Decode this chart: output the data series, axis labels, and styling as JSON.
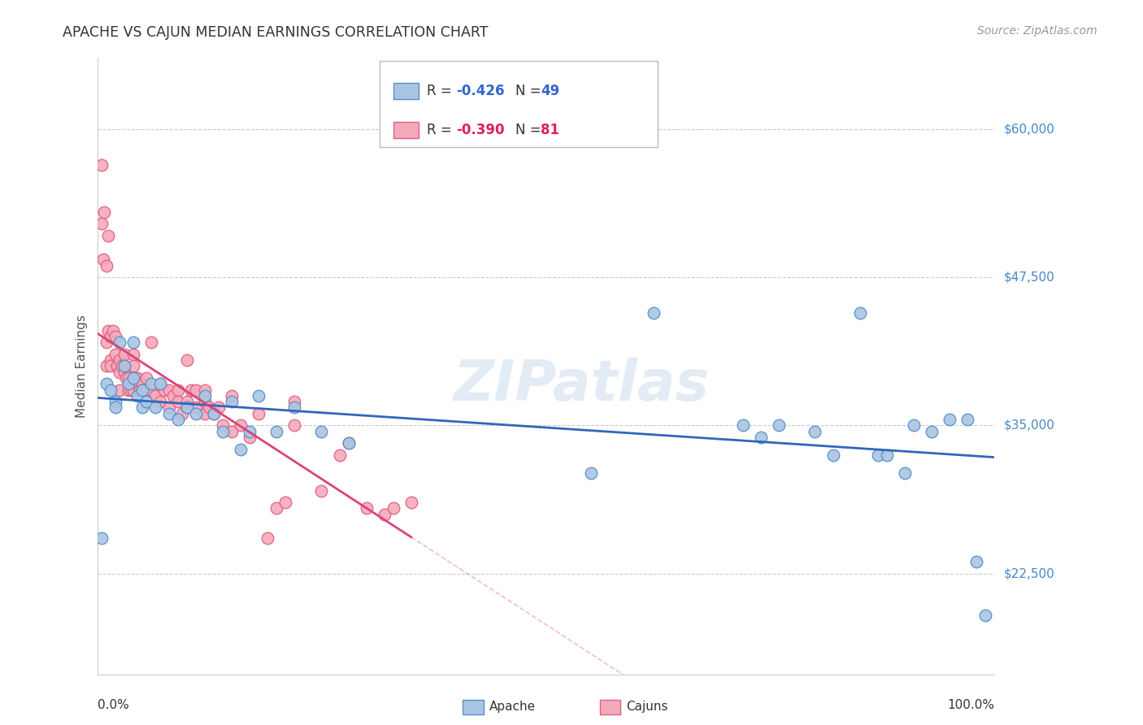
{
  "title": "APACHE VS CAJUN MEDIAN EARNINGS CORRELATION CHART",
  "source": "Source: ZipAtlas.com",
  "ylabel": "Median Earnings",
  "yticks": [
    22500,
    35000,
    47500,
    60000
  ],
  "ytick_labels": [
    "$22,500",
    "$35,000",
    "$47,500",
    "$60,000"
  ],
  "xlim": [
    0.0,
    1.0
  ],
  "ylim": [
    14000,
    66000
  ],
  "apache_color": "#aac5e2",
  "cajun_color": "#f5aabb",
  "apache_edge_color": "#5590cc",
  "cajun_edge_color": "#e06080",
  "apache_line_color": "#3366bb",
  "cajun_line_color": "#dd4477",
  "apache_R": -0.426,
  "apache_N": 49,
  "cajun_R": -0.39,
  "cajun_N": 81,
  "watermark": "ZIPatlas",
  "background_color": "#ffffff",
  "apache_x": [
    0.005,
    0.01,
    0.015,
    0.02,
    0.02,
    0.025,
    0.03,
    0.035,
    0.04,
    0.04,
    0.045,
    0.05,
    0.05,
    0.055,
    0.06,
    0.065,
    0.07,
    0.08,
    0.09,
    0.1,
    0.11,
    0.12,
    0.13,
    0.14,
    0.15,
    0.16,
    0.17,
    0.18,
    0.2,
    0.22,
    0.25,
    0.28,
    0.55,
    0.62,
    0.72,
    0.74,
    0.76,
    0.8,
    0.82,
    0.85,
    0.87,
    0.88,
    0.9,
    0.91,
    0.93,
    0.95,
    0.97,
    0.98,
    0.99
  ],
  "apache_y": [
    25500,
    38500,
    38000,
    37000,
    36500,
    42000,
    40000,
    38500,
    42000,
    39000,
    37500,
    38000,
    36500,
    37000,
    38500,
    36500,
    38500,
    36000,
    35500,
    36500,
    36000,
    37500,
    36000,
    34500,
    37000,
    33000,
    34500,
    37500,
    34500,
    36500,
    34500,
    33500,
    31000,
    44500,
    35000,
    34000,
    35000,
    34500,
    32500,
    44500,
    32500,
    32500,
    31000,
    35000,
    34500,
    35500,
    35500,
    23500,
    19000
  ],
  "cajun_x": [
    0.005,
    0.005,
    0.007,
    0.008,
    0.01,
    0.01,
    0.01,
    0.012,
    0.012,
    0.015,
    0.015,
    0.015,
    0.018,
    0.02,
    0.02,
    0.022,
    0.022,
    0.025,
    0.025,
    0.025,
    0.028,
    0.03,
    0.03,
    0.03,
    0.032,
    0.035,
    0.035,
    0.038,
    0.04,
    0.04,
    0.04,
    0.042,
    0.045,
    0.045,
    0.048,
    0.05,
    0.05,
    0.055,
    0.055,
    0.06,
    0.06,
    0.065,
    0.07,
    0.07,
    0.075,
    0.08,
    0.08,
    0.085,
    0.09,
    0.09,
    0.095,
    0.1,
    0.1,
    0.105,
    0.11,
    0.11,
    0.12,
    0.12,
    0.125,
    0.13,
    0.135,
    0.14,
    0.15,
    0.16,
    0.17,
    0.18,
    0.19,
    0.2,
    0.21,
    0.22,
    0.25,
    0.27,
    0.28,
    0.3,
    0.32,
    0.33,
    0.35,
    0.22,
    0.15,
    0.12,
    0.1
  ],
  "cajun_y": [
    57000,
    52000,
    49000,
    53000,
    48500,
    42000,
    40000,
    51000,
    43000,
    42500,
    40500,
    40000,
    43000,
    42500,
    41000,
    40000,
    40000,
    40500,
    39500,
    38000,
    40000,
    41000,
    40000,
    39500,
    39000,
    39000,
    38000,
    38000,
    41000,
    40000,
    38000,
    39000,
    39000,
    38500,
    38000,
    38500,
    38000,
    39000,
    38000,
    42000,
    38000,
    37500,
    38500,
    37000,
    38000,
    36500,
    38000,
    37500,
    38000,
    37000,
    36000,
    36500,
    37000,
    38000,
    38000,
    36500,
    36000,
    37000,
    36500,
    36000,
    36500,
    35000,
    34500,
    35000,
    34000,
    36000,
    25500,
    28000,
    28500,
    35000,
    29500,
    32500,
    33500,
    28000,
    27500,
    28000,
    28500,
    37000,
    37500,
    38000,
    40500
  ]
}
